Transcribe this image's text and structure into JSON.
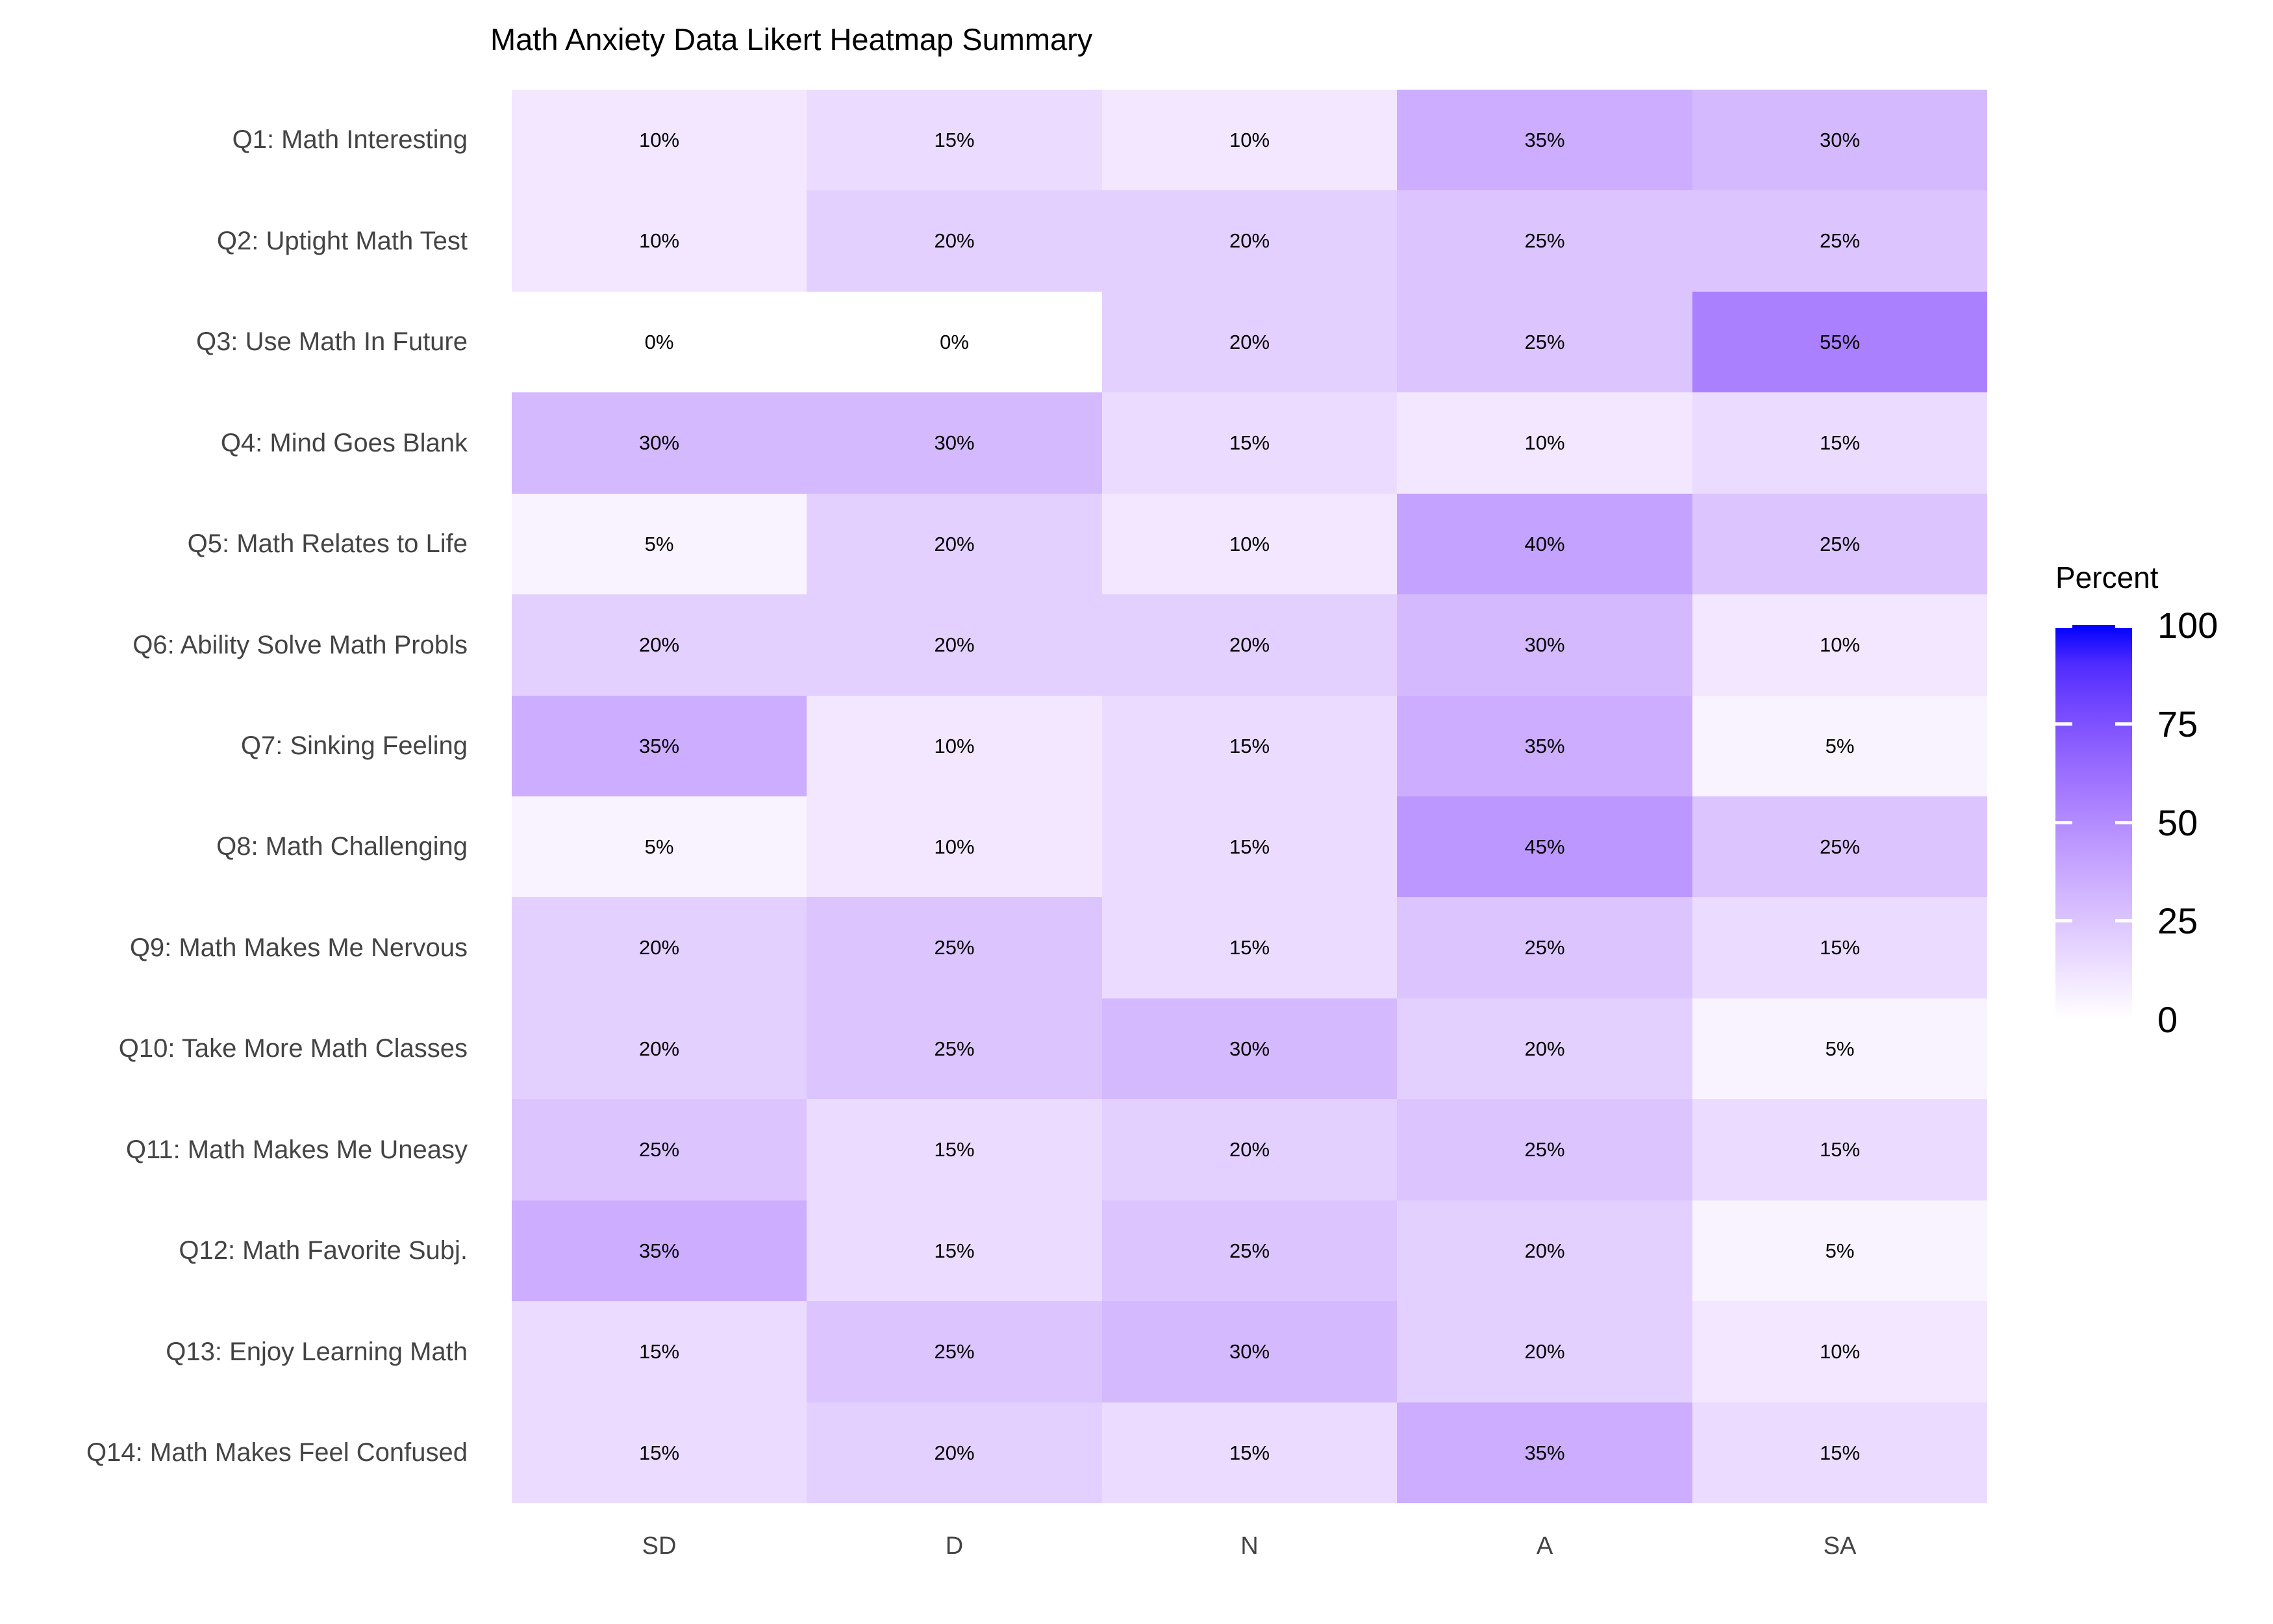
{
  "title": "Math Anxiety Data Likert Heatmap Summary",
  "chart_data": {
    "type": "heatmap",
    "title": "Math Anxiety Data Likert Heatmap Summary",
    "x_categories": [
      "SD",
      "D",
      "N",
      "A",
      "SA"
    ],
    "rows": [
      {
        "label": "Q1: Math Interesting",
        "values": [
          10,
          15,
          10,
          35,
          30
        ]
      },
      {
        "label": "Q2: Uptight Math Test",
        "values": [
          10,
          20,
          20,
          25,
          25
        ]
      },
      {
        "label": "Q3: Use Math In Future",
        "values": [
          0,
          0,
          20,
          25,
          55
        ]
      },
      {
        "label": "Q4: Mind Goes Blank",
        "values": [
          30,
          30,
          15,
          10,
          15
        ]
      },
      {
        "label": "Q5: Math Relates to Life",
        "values": [
          5,
          20,
          10,
          40,
          25
        ]
      },
      {
        "label": "Q6: Ability Solve Math Probls",
        "values": [
          20,
          20,
          20,
          30,
          10
        ]
      },
      {
        "label": "Q7: Sinking Feeling",
        "values": [
          35,
          10,
          15,
          35,
          5
        ]
      },
      {
        "label": "Q8: Math Challenging",
        "values": [
          5,
          10,
          15,
          45,
          25
        ]
      },
      {
        "label": "Q9: Math Makes Me Nervous",
        "values": [
          20,
          25,
          15,
          25,
          15
        ]
      },
      {
        "label": "Q10: Take More Math Classes",
        "values": [
          20,
          25,
          30,
          20,
          5
        ]
      },
      {
        "label": "Q11: Math Makes Me Uneasy",
        "values": [
          25,
          15,
          20,
          25,
          15
        ]
      },
      {
        "label": "Q12: Math Favorite Subj.",
        "values": [
          35,
          15,
          25,
          20,
          5
        ]
      },
      {
        "label": "Q13: Enjoy Learning Math",
        "values": [
          15,
          25,
          30,
          20,
          10
        ]
      },
      {
        "label": "Q14: Math Makes Feel Confused",
        "values": [
          15,
          20,
          15,
          35,
          15
        ]
      }
    ],
    "cell_label_suffix": "%",
    "value_range": [
      0,
      100
    ],
    "grid_lines": false,
    "legend": {
      "title": "Percent",
      "position": "right",
      "tick_labels": [
        "100",
        "75",
        "50",
        "25",
        "0"
      ],
      "tick_values": [
        100,
        75,
        50,
        25,
        0
      ],
      "bar_tick_marks": [
        25,
        50,
        75,
        100
      ]
    },
    "color_scale": {
      "low": "#FFFFFF",
      "high": "#0000FF",
      "interpolation": "lab"
    }
  },
  "text_colors": {
    "title": "#000000",
    "axis": "#444444",
    "cell": "#000000",
    "legend": "#000000"
  }
}
